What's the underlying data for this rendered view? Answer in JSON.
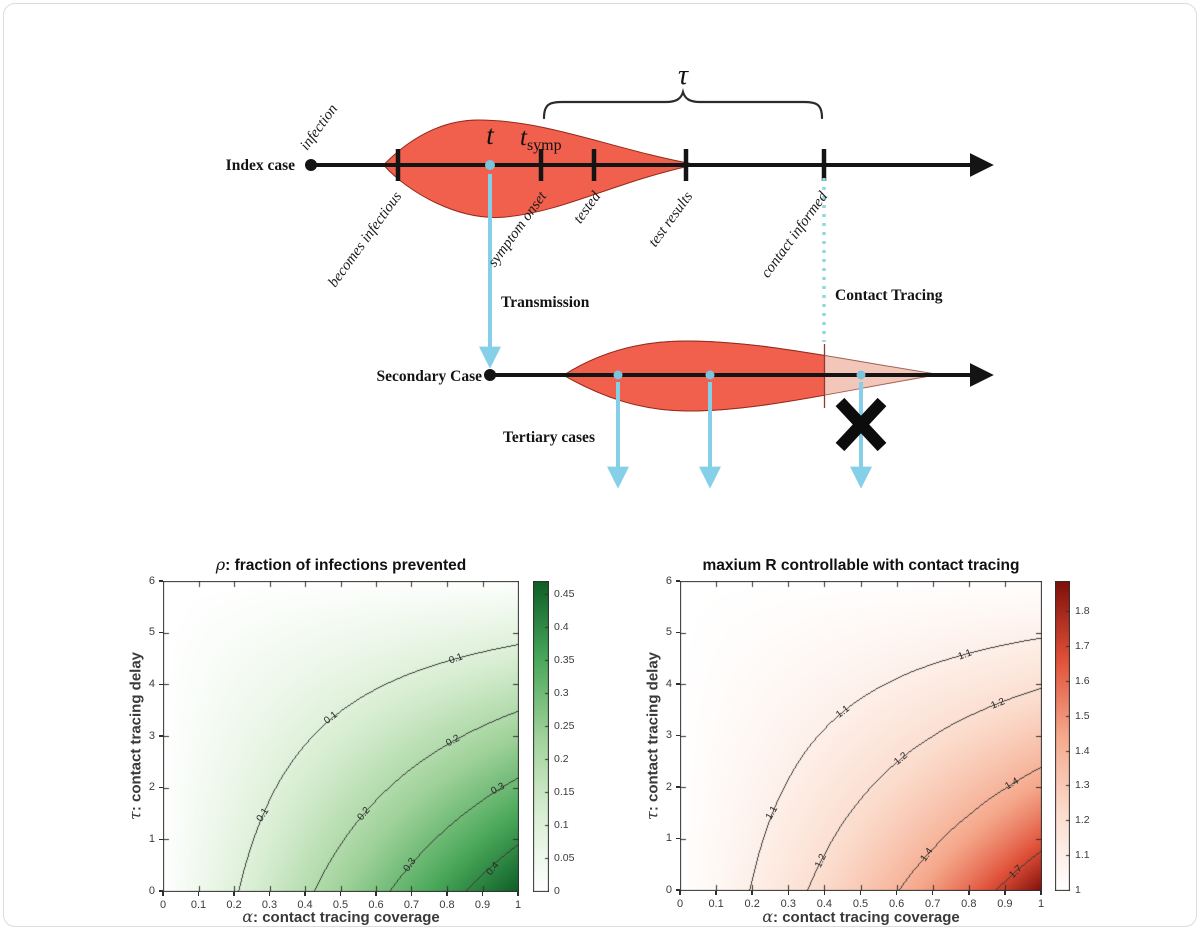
{
  "diagram": {
    "index_case_label": "Index case",
    "secondary_case_label": "Secondary Case",
    "tertiary_cases_label": "Tertiary cases",
    "transmission_label": "Transmission",
    "contact_tracing_label": "Contact Tracing",
    "tau_symbol": "τ",
    "transmission_time_label": "t",
    "symptom_time_base": "t",
    "symptom_time_sub": "symp",
    "index_events": [
      "infection",
      "becomes infectious",
      "symptom onset",
      "tested",
      "test results",
      "contact informed"
    ],
    "colors": {
      "distribution_red": "#f0604d",
      "distribution_faded": "#f3c6ba",
      "arrow_blue": "#85cfe9",
      "dotted_teal": "#93d8d6",
      "axis_black": "#141414"
    }
  },
  "chart_data": [
    {
      "type": "heatmap",
      "title_greek": "ρ",
      "title_rest": ": fraction of infections prevented",
      "xlabel_greek": "α",
      "xlabel_rest": ": contact tracing coverage",
      "ylabel_greek": "τ",
      "ylabel_rest": ": contact tracing delay",
      "xlim": [
        0,
        1
      ],
      "ylim": [
        0,
        6
      ],
      "x_ticks": [
        0,
        0.1,
        0.2,
        0.3,
        0.4,
        0.5,
        0.6,
        0.7,
        0.8,
        0.9,
        1
      ],
      "x_tick_labels": [
        "0",
        "0.1",
        "0.2",
        "0.3",
        "0.4",
        "0.5",
        "0.6",
        "0.7",
        "0.8",
        "0.9",
        "1"
      ],
      "y_ticks": [
        0,
        1,
        2,
        3,
        4,
        5,
        6
      ],
      "y_tick_labels": [
        "0",
        "1",
        "2",
        "3",
        "4",
        "5",
        "6"
      ],
      "grid_alpha": [
        0,
        0.1,
        0.2,
        0.3,
        0.4,
        0.5,
        0.6,
        0.7,
        0.8,
        0.9,
        1
      ],
      "grid_tau": [
        0,
        0.5,
        1,
        1.5,
        2,
        2.5,
        3,
        3.5,
        4,
        4.5,
        5,
        5.5,
        6
      ],
      "values": [
        [
          0,
          0.047,
          0.094,
          0.141,
          0.188,
          0.235,
          0.282,
          0.329,
          0.376,
          0.423,
          0.47
        ],
        [
          0,
          0.0431,
          0.0862,
          0.1294,
          0.1725,
          0.2156,
          0.2587,
          0.3019,
          0.345,
          0.3881,
          0.4312
        ],
        [
          0,
          0.0392,
          0.0785,
          0.1177,
          0.157,
          0.1962,
          0.2355,
          0.2747,
          0.314,
          0.3532,
          0.3925
        ],
        [
          0,
          0.0354,
          0.0707,
          0.1061,
          0.1415,
          0.1768,
          0.2122,
          0.2476,
          0.2829,
          0.3183,
          0.3537
        ],
        [
          0,
          0.0315,
          0.063,
          0.0945,
          0.126,
          0.1575,
          0.1889,
          0.2204,
          0.2519,
          0.2834,
          0.3149
        ],
        [
          0,
          0.0276,
          0.0552,
          0.0828,
          0.1105,
          0.1381,
          0.1657,
          0.1933,
          0.2209,
          0.2485,
          0.2761
        ],
        [
          0,
          0.0237,
          0.0475,
          0.0712,
          0.0949,
          0.1187,
          0.1424,
          0.1661,
          0.1899,
          0.2136,
          0.2374
        ],
        [
          0,
          0.0199,
          0.0397,
          0.0596,
          0.0794,
          0.0993,
          0.1191,
          0.139,
          0.1589,
          0.1787,
          0.1986
        ],
        [
          0,
          0.016,
          0.032,
          0.0479,
          0.0639,
          0.0799,
          0.0959,
          0.1119,
          0.1278,
          0.1438,
          0.1598
        ],
        [
          0,
          0.0121,
          0.0242,
          0.0363,
          0.0484,
          0.0605,
          0.0726,
          0.0847,
          0.0968,
          0.1089,
          0.121
        ],
        [
          0,
          0.0082,
          0.0165,
          0.0247,
          0.0329,
          0.0411,
          0.0494,
          0.0576,
          0.0658,
          0.074,
          0.0823
        ],
        [
          0,
          0.0043,
          0.0087,
          0.013,
          0.0174,
          0.0217,
          0.0261,
          0.0304,
          0.0348,
          0.0391,
          0.0435
        ],
        [
          0,
          0.0005,
          0.0009,
          0.0014,
          0.0019,
          0.0024,
          0.0028,
          0.0033,
          0.0038,
          0.0042,
          0.0047
        ]
      ],
      "contour_levels": [
        0.1,
        0.2,
        0.3,
        0.4
      ],
      "contour_labels": [
        {
          "text": "0.1",
          "a": 0.826,
          "t": 4.5,
          "rot": -20
        },
        {
          "text": "0.1",
          "a": 0.474,
          "t": 3.34,
          "rot": -38
        },
        {
          "text": "0.1",
          "a": 0.281,
          "t": 1.47,
          "rot": -58
        },
        {
          "text": "0.2",
          "a": 0.818,
          "t": 2.91,
          "rot": -28
        },
        {
          "text": "0.2",
          "a": 0.565,
          "t": 1.5,
          "rot": -50
        },
        {
          "text": "0.3",
          "a": 0.945,
          "t": 1.97,
          "rot": -28
        },
        {
          "text": "0.3",
          "a": 0.695,
          "t": 0.5,
          "rot": -55
        },
        {
          "text": "0.4",
          "a": 0.93,
          "t": 0.42,
          "rot": -50
        }
      ],
      "colorbar": {
        "min": 0,
        "max": 0.47,
        "ticks": [
          0,
          0.05,
          0.1,
          0.15,
          0.2,
          0.25,
          0.3,
          0.35,
          0.4,
          0.45
        ],
        "tick_labels": [
          "0",
          "0.05",
          "0.1",
          "0.15",
          "0.2",
          "0.25",
          "0.3",
          "0.35",
          "0.4",
          "0.45"
        ]
      },
      "colormap": [
        {
          "t": 0,
          "c": "#ffffff"
        },
        {
          "t": 0.25,
          "c": "#d9eed3"
        },
        {
          "t": 0.5,
          "c": "#a0d29a"
        },
        {
          "t": 0.75,
          "c": "#4aa85a"
        },
        {
          "t": 1,
          "c": "#0d5e26"
        }
      ]
    },
    {
      "type": "heatmap",
      "title_greek": "",
      "title_rest": "maxium R controllable with contact tracing",
      "xlabel_greek": "α",
      "xlabel_rest": ": contact tracing coverage",
      "ylabel_greek": "τ",
      "ylabel_rest": ": contact tracing delay",
      "xlim": [
        0,
        1
      ],
      "ylim": [
        0,
        6
      ],
      "x_ticks": [
        0,
        0.1,
        0.2,
        0.3,
        0.4,
        0.5,
        0.6,
        0.7,
        0.8,
        0.9,
        1
      ],
      "x_tick_labels": [
        "0",
        "0.1",
        "0.2",
        "0.3",
        "0.4",
        "0.5",
        "0.6",
        "0.7",
        "0.8",
        "0.9",
        "1"
      ],
      "y_ticks": [
        0,
        1,
        2,
        3,
        4,
        5,
        6
      ],
      "y_tick_labels": [
        "0",
        "1",
        "2",
        "3",
        "4",
        "5",
        "6"
      ],
      "grid_alpha": [
        0,
        0.1,
        0.2,
        0.3,
        0.4,
        0.5,
        0.6,
        0.7,
        0.8,
        0.9,
        1
      ],
      "grid_tau": [
        0,
        0.5,
        1,
        1.5,
        2,
        2.5,
        3,
        3.5,
        4,
        4.5,
        5,
        5.5,
        6
      ],
      "values": [
        [
          1,
          1.0493,
          1.1038,
          1.1641,
          1.2315,
          1.3072,
          1.3928,
          1.4903,
          1.6026,
          1.7331,
          1.8868
        ],
        [
          1,
          1.045,
          1.0943,
          1.1486,
          1.2085,
          1.2749,
          1.349,
          1.4324,
          1.5267,
          1.6343,
          1.7581
        ],
        [
          1,
          1.0408,
          1.0851,
          1.1334,
          1.1862,
          1.2441,
          1.308,
          1.3788,
          1.4577,
          1.5461,
          1.646
        ],
        [
          1,
          1.0367,
          1.0761,
          1.1187,
          1.1648,
          1.2148,
          1.2694,
          1.3291,
          1.3946,
          1.4669,
          1.5472
        ],
        [
          1,
          1.0325,
          1.0672,
          1.1043,
          1.1441,
          1.1869,
          1.2329,
          1.2827,
          1.3367,
          1.3955,
          1.4596
        ],
        [
          1,
          1.0284,
          1.0584,
          1.0903,
          1.1242,
          1.1602,
          1.1986,
          1.2396,
          1.2835,
          1.3307,
          1.3815
        ],
        [
          1,
          1.0243,
          1.0498,
          1.0767,
          1.1049,
          1.1346,
          1.166,
          1.1992,
          1.2344,
          1.2716,
          1.3112
        ],
        [
          1,
          1.0203,
          1.0413,
          1.0634,
          1.0863,
          1.1102,
          1.1352,
          1.1614,
          1.1889,
          1.2176,
          1.2478
        ],
        [
          1,
          1.0162,
          1.033,
          1.0504,
          1.0683,
          1.0868,
          1.1061,
          1.126,
          1.1466,
          1.168,
          1.1902
        ],
        [
          1,
          1.0122,
          1.0248,
          1.0377,
          1.0509,
          1.0644,
          1.0783,
          1.0925,
          1.1072,
          1.1222,
          1.1377
        ],
        [
          1,
          1.0083,
          1.0167,
          1.0253,
          1.034,
          1.0429,
          1.0519,
          1.0611,
          1.0704,
          1.0799,
          1.0896
        ],
        [
          1,
          1.0044,
          1.0088,
          1.0132,
          1.0177,
          1.0222,
          1.0268,
          1.0314,
          1.036,
          1.0407,
          1.0455
        ],
        [
          1,
          1.0005,
          1.0009,
          1.0014,
          1.0019,
          1.0024,
          1.0028,
          1.0033,
          1.0038,
          1.0042,
          1.0047
        ]
      ],
      "contour_levels": [
        1.1,
        1.2,
        1.4,
        1.7
      ],
      "contour_labels": [
        {
          "text": "1.1",
          "a": 0.79,
          "t": 4.57,
          "rot": -20
        },
        {
          "text": "1.1",
          "a": 0.451,
          "t": 3.46,
          "rot": -38
        },
        {
          "text": "1.1",
          "a": 0.256,
          "t": 1.49,
          "rot": -60
        },
        {
          "text": "1.2",
          "a": 0.88,
          "t": 3.62,
          "rot": -22
        },
        {
          "text": "1.2",
          "a": 0.612,
          "t": 2.55,
          "rot": -40
        },
        {
          "text": "1.2",
          "a": 0.391,
          "t": 0.56,
          "rot": -65
        },
        {
          "text": "1.4",
          "a": 0.919,
          "t": 2.05,
          "rot": -30
        },
        {
          "text": "1.4",
          "a": 0.685,
          "t": 0.68,
          "rot": -55
        },
        {
          "text": "1.7",
          "a": 0.93,
          "t": 0.35,
          "rot": -45
        }
      ],
      "colorbar": {
        "min": 1,
        "max": 1.887,
        "ticks": [
          1,
          1.1,
          1.2,
          1.3,
          1.4,
          1.5,
          1.6,
          1.7,
          1.8
        ],
        "tick_labels": [
          "1",
          "1.1",
          "1.2",
          "1.3",
          "1.4",
          "1.5",
          "1.6",
          "1.7",
          "1.8"
        ]
      },
      "colormap": [
        {
          "t": 0,
          "c": "#ffffff"
        },
        {
          "t": 0.25,
          "c": "#fbdccd"
        },
        {
          "t": 0.5,
          "c": "#f5a98c"
        },
        {
          "t": 0.75,
          "c": "#e05038"
        },
        {
          "t": 1,
          "c": "#7f0f0a"
        }
      ]
    }
  ]
}
